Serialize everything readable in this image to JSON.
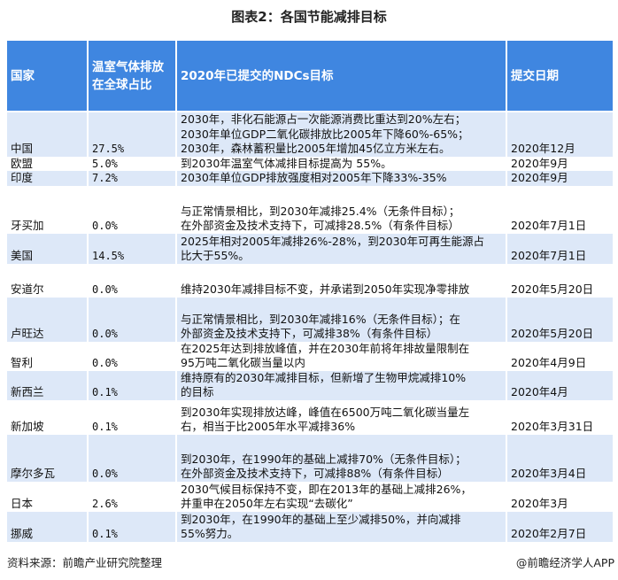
{
  "title": "图表2：各国节能减排目标",
  "colors": {
    "header_bg": "#3f86e0",
    "row_alt_bg": "#dde8f8"
  },
  "table": {
    "headers": [
      "国家",
      "温室气体排放在全球占比",
      "2020年已提交的NDCs目标",
      "提交日期"
    ],
    "rows": [
      {
        "country": "中国",
        "share": "27.5%",
        "target": "2030年，非化石能源占一次能源消费比重达到20%左右；\n2030年单位GDP二氧化碳排放比2005年下降60%-65%；\n2030年，森林蓄积量比2005年增加45亿立方米左右。",
        "date": "2020年12月"
      },
      {
        "country": "欧盟",
        "share": "5.0%",
        "target": "到2030年温室气体减排目标提高为 55%。",
        "date": "2020年9月"
      },
      {
        "country": "印度",
        "share": "7.2%",
        "target": "2030年单位GDP排放强度相对2005年下降33%-35%",
        "date": "2020年9月"
      },
      {
        "country": "牙买加",
        "share": "0.0%",
        "target": "与正常情景相比，到2030年减排25.4%（无条件目标）；\n在外部资金及技术支持下，可减排28.5%（有条件目标）",
        "date": "2020年7月1日"
      },
      {
        "country": "美国",
        "share": "14.5%",
        "target": "2025年相对2005年减排26%-28%，到2030年可再生能源占\n比大于55%。",
        "date": "2020年7月1日"
      },
      {
        "country": "安道尔",
        "share": "0.0%",
        "target": "维持2030年减排目标不变，并承诺到2050年实现净零排放",
        "date": "2020年5月20日"
      },
      {
        "country": "卢旺达",
        "share": "0.0%",
        "target": "与正常情景相比，到2030年减排16%（无条件目标）；在\n外部资金及技术支持下，可减排38%（有条件目标）",
        "date": "2020年5月20日"
      },
      {
        "country": "智利",
        "share": "0.0%",
        "target": "在2025年达到排放峰值，并在2030年前将年排故量限制在\n95万吨二氧化碳当量以内",
        "date": "2020年4月9日"
      },
      {
        "country": "新西兰",
        "share": "0.1%",
        "target": "维持原有的2030年减排目标，但新增了生物甲烷减排10%\n的目标",
        "date": "2020年4月"
      },
      {
        "country": "新加坡",
        "share": "0.1%",
        "target": "到2030年实现排放达峰，峰值在6500万吨二氧化碳当量左\n右，相当于比2005年水平减排36%",
        "date": "2020年3月31日"
      },
      {
        "country": "摩尔多瓦",
        "share": "0.0%",
        "target": "到2030年，在1990年的基础上减排70%（无条件目标）；\n在外部资金及技术支持下，可减排88%（有条件目标）",
        "date": "2020年3月4日"
      },
      {
        "country": "日本",
        "share": "2.6%",
        "target": "2030气候目标保持不变，即在2013年的基础上减排26%，\n并重申在2050年左右实现“去碳化”",
        "date": "2020年3月"
      },
      {
        "country": "挪威",
        "share": "0.1%",
        "target": "到2030年，在1990年的基础上至少减排50%，并向减排\n55%努力。",
        "date": "2020年2月7日"
      }
    ]
  },
  "footer": {
    "source": "资料来源：前瞻产业研究院整理",
    "credit": "@前瞻经济学人APP"
  }
}
